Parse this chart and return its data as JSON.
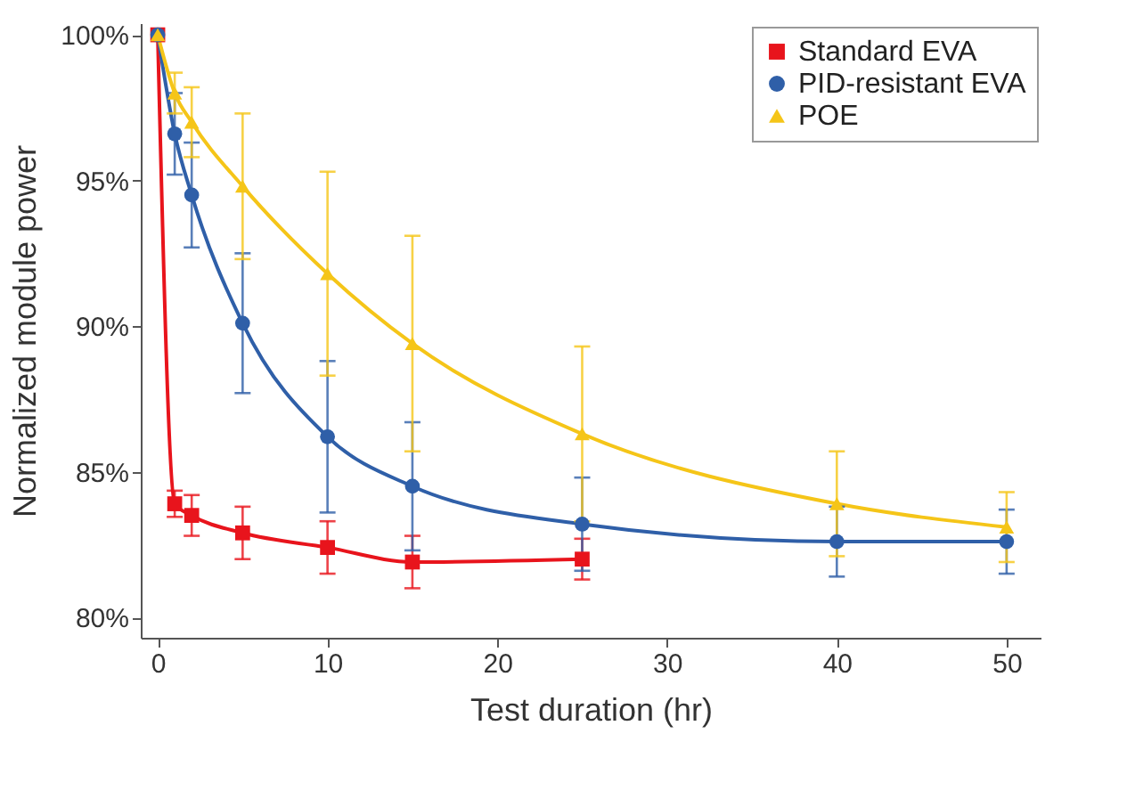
{
  "chart_data": {
    "type": "line",
    "xlabel": "Test duration (hr)",
    "ylabel": "Normalized module power",
    "xlim": [
      -1,
      52
    ],
    "xticks": [
      0,
      10,
      20,
      30,
      40,
      50
    ],
    "ylim": [
      79.3,
      100.4
    ],
    "yticks": [
      {
        "value": 80,
        "label": "80%"
      },
      {
        "value": 85,
        "label": "85%"
      },
      {
        "value": 90,
        "label": "90%"
      },
      {
        "value": 95,
        "label": "95%"
      },
      {
        "value": 100,
        "label": "100%"
      }
    ],
    "grid": false,
    "legend": "top right",
    "series": [
      {
        "name": "Standard EVA",
        "color": "#e8141c",
        "marker": "square",
        "x": [
          0,
          1,
          2,
          5,
          10,
          15,
          25
        ],
        "values": [
          100,
          83.9,
          83.5,
          82.9,
          82.4,
          81.9,
          82.0
        ],
        "errors": [
          null,
          0.45,
          0.7,
          0.9,
          0.9,
          0.9,
          0.7
        ]
      },
      {
        "name": "PID-resistant EVA",
        "color": "#2f5fa8",
        "marker": "circle",
        "x": [
          0,
          1,
          2,
          5,
          10,
          15,
          25,
          40,
          50
        ],
        "values": [
          100,
          96.6,
          94.5,
          90.1,
          86.2,
          84.5,
          83.2,
          82.6,
          82.6
        ],
        "errors": [
          null,
          1.4,
          1.8,
          2.4,
          2.6,
          2.2,
          1.6,
          1.2,
          1.1
        ]
      },
      {
        "name": "POE",
        "color": "#f5c518",
        "marker": "triangle",
        "x": [
          0,
          1,
          2,
          5,
          10,
          15,
          25,
          40,
          50
        ],
        "values": [
          100,
          98.0,
          97.0,
          94.8,
          91.8,
          89.4,
          86.3,
          83.9,
          83.1
        ],
        "errors": [
          null,
          0.7,
          1.2,
          2.5,
          3.5,
          3.7,
          3.0,
          1.8,
          1.2
        ]
      }
    ]
  }
}
